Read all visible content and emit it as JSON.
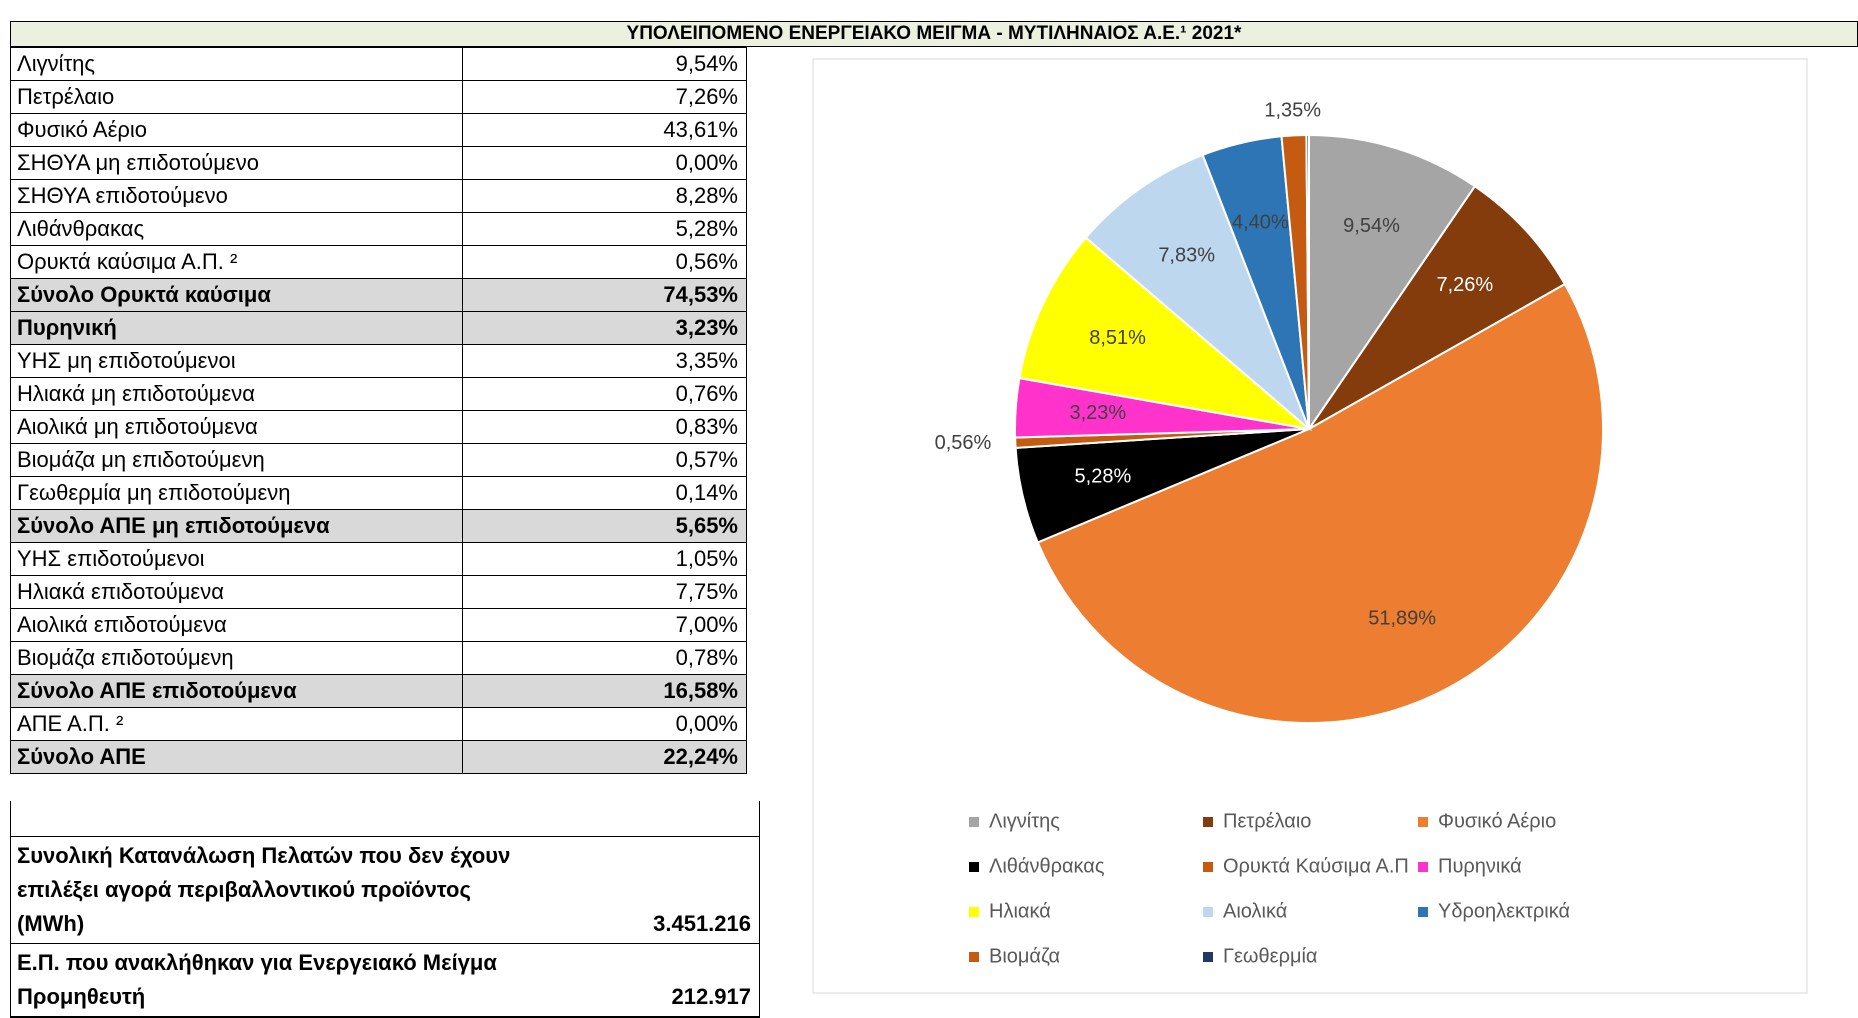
{
  "title": "ΥΠΟΛΕΙΠΟΜΕΝΟ ΕΝΕΡΓΕΙΑΚΟ ΜΕΙΓΜΑ - ΜΥΤΙΛΗΝΑΙΟΣ Α.Ε.¹ 2021*",
  "table": {
    "rows": [
      {
        "label": "Λιγνίτης",
        "value": "9,54%"
      },
      {
        "label": "Πετρέλαιο",
        "value": "7,26%"
      },
      {
        "label": "Φυσικό Αέριο",
        "value": "43,61%"
      },
      {
        "label": "ΣΗΘΥΑ μη επιδοτούμενο",
        "value": "0,00%"
      },
      {
        "label": "ΣΗΘΥΑ επιδοτούμενο",
        "value": "8,28%"
      },
      {
        "label": "Λιθάνθρακας",
        "value": "5,28%"
      },
      {
        "label": "Ορυκτά καύσιμα Α.Π. ²",
        "value": "0,56%"
      },
      {
        "label": "Σύνολο Ορυκτά καύσιμα",
        "value": "74,53%",
        "bold": true
      },
      {
        "label": "Πυρηνική",
        "value": "3,23%",
        "bold": true
      },
      {
        "label": "ΥΗΣ μη επιδοτούμενοι",
        "value": "3,35%"
      },
      {
        "label": "Ηλιακά μη επιδοτούμενα",
        "value": "0,76%"
      },
      {
        "label": "Αιολικά μη επιδοτούμενα",
        "value": "0,83%"
      },
      {
        "label": "Βιομάζα μη επιδοτούμενη",
        "value": "0,57%"
      },
      {
        "label": "Γεωθερμία μη επιδοτούμενη",
        "value": "0,14%"
      },
      {
        "label": "Σύνολο ΑΠΕ μη επιδοτούμενα",
        "value": "5,65%",
        "bold": true
      },
      {
        "label": "ΥΗΣ επιδοτούμενοι",
        "value": "1,05%"
      },
      {
        "label": "Ηλιακά επιδοτούμενα",
        "value": "7,75%"
      },
      {
        "label": "Αιολικά επιδοτούμενα",
        "value": "7,00%"
      },
      {
        "label": "Βιομάζα επιδοτούμενη",
        "value": "0,78%"
      },
      {
        "label": "Σύνολο ΑΠΕ επιδοτούμενα",
        "value": "16,58%",
        "bold": true
      },
      {
        "label": "ΑΠΕ Α.Π. ²",
        "value": "0,00%"
      },
      {
        "label": "Σύνολο ΑΠΕ",
        "value": "22,24%",
        "bold": true
      }
    ]
  },
  "summary": [
    {
      "label": "Συνολική Κατανάλωση Πελατών που δεν έχουν επιλέξει αγορά περιβαλλοντικού προϊόντος (MWh)",
      "value": "3.451.216"
    },
    {
      "label": "Ε.Π. που ανακλήθηκαν για Ενεργειακό Μείγμα Προμηθευτή",
      "value": "212.917"
    }
  ],
  "chart_data": {
    "type": "pie",
    "categories": [
      "Λιγνίτης",
      "Πετρέλαιο",
      "Φυσικό Αέριο",
      "Λιθάνθρακας",
      "Ορυκτά Καύσιμα Α.Π",
      "Πυρηνικά",
      "Ηλιακά",
      "Αιολικά",
      "Υδροηλεκτρικά",
      "Βιομάζα",
      "Γεωθερμία"
    ],
    "values": [
      9.54,
      7.26,
      51.89,
      5.28,
      0.56,
      3.23,
      8.51,
      7.83,
      4.4,
      1.35,
      0.14
    ],
    "value_labels": [
      "9,54%",
      "7,26%",
      "51,89%",
      "5,28%",
      "0,56%",
      "3,23%",
      "8,51%",
      "7,83%",
      "4,40%",
      "1,35%",
      null
    ],
    "colors": [
      "#a5a5a5",
      "#843c0c",
      "#ed7d31",
      "#000000",
      "#c55a11",
      "#ff33cc",
      "#ffff00",
      "#bdd7ee",
      "#2e75b6",
      "#c55a11",
      "#1f3864"
    ],
    "legend": "bottom"
  }
}
